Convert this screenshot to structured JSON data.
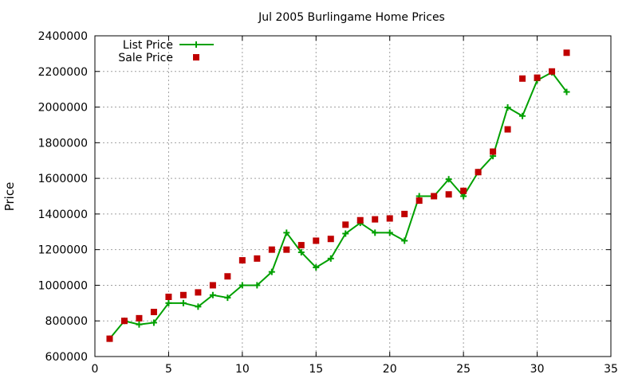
{
  "chart_data": {
    "type": "line",
    "title": "Jul 2005 Burlingame Home Prices",
    "xlabel": "",
    "ylabel": "Price",
    "xlim": [
      0,
      35
    ],
    "ylim": [
      600000,
      2400000
    ],
    "x_ticks": [
      "0",
      "5",
      "10",
      "15",
      "20",
      "25",
      "30",
      "35"
    ],
    "y_ticks": [
      "600000",
      "800000",
      "1000000",
      "1200000",
      "1400000",
      "1600000",
      "1800000",
      "2000000",
      "2200000",
      "2400000"
    ],
    "grid": true,
    "legend_position": "top-left",
    "series": [
      {
        "name": "List Price",
        "style": "linespoints",
        "color": "#00a000",
        "marker": "plus",
        "x": [
          1,
          2,
          3,
          4,
          5,
          6,
          7,
          8,
          9,
          10,
          11,
          12,
          13,
          14,
          15,
          16,
          17,
          18,
          19,
          20,
          21,
          22,
          23,
          24,
          25,
          26,
          27,
          28,
          29,
          30,
          31,
          32
        ],
        "y": [
          700000,
          800000,
          780000,
          790000,
          900000,
          900000,
          880000,
          945000,
          930000,
          1000000,
          1000000,
          1075000,
          1295000,
          1185000,
          1100000,
          1150000,
          1290000,
          1350000,
          1295000,
          1295000,
          1250000,
          1500000,
          1500000,
          1595000,
          1500000,
          1635000,
          1725000,
          1998000,
          1950000,
          2150000,
          2195000,
          2085000
        ]
      },
      {
        "name": "Sale Price",
        "style": "points",
        "color": "#c00000",
        "marker": "square",
        "x": [
          1,
          2,
          3,
          4,
          5,
          6,
          7,
          8,
          9,
          10,
          11,
          12,
          13,
          14,
          15,
          16,
          17,
          18,
          19,
          20,
          21,
          22,
          23,
          24,
          25,
          26,
          27,
          28,
          29,
          30,
          31,
          32
        ],
        "y": [
          700000,
          800000,
          815000,
          850000,
          935000,
          945000,
          960000,
          1000000,
          1050000,
          1140000,
          1150000,
          1200000,
          1200000,
          1225000,
          1250000,
          1260000,
          1340000,
          1365000,
          1370000,
          1375000,
          1400000,
          1475000,
          1500000,
          1510000,
          1530000,
          1635000,
          1750000,
          1875000,
          2160000,
          2165000,
          2200000,
          2305000
        ]
      }
    ]
  }
}
